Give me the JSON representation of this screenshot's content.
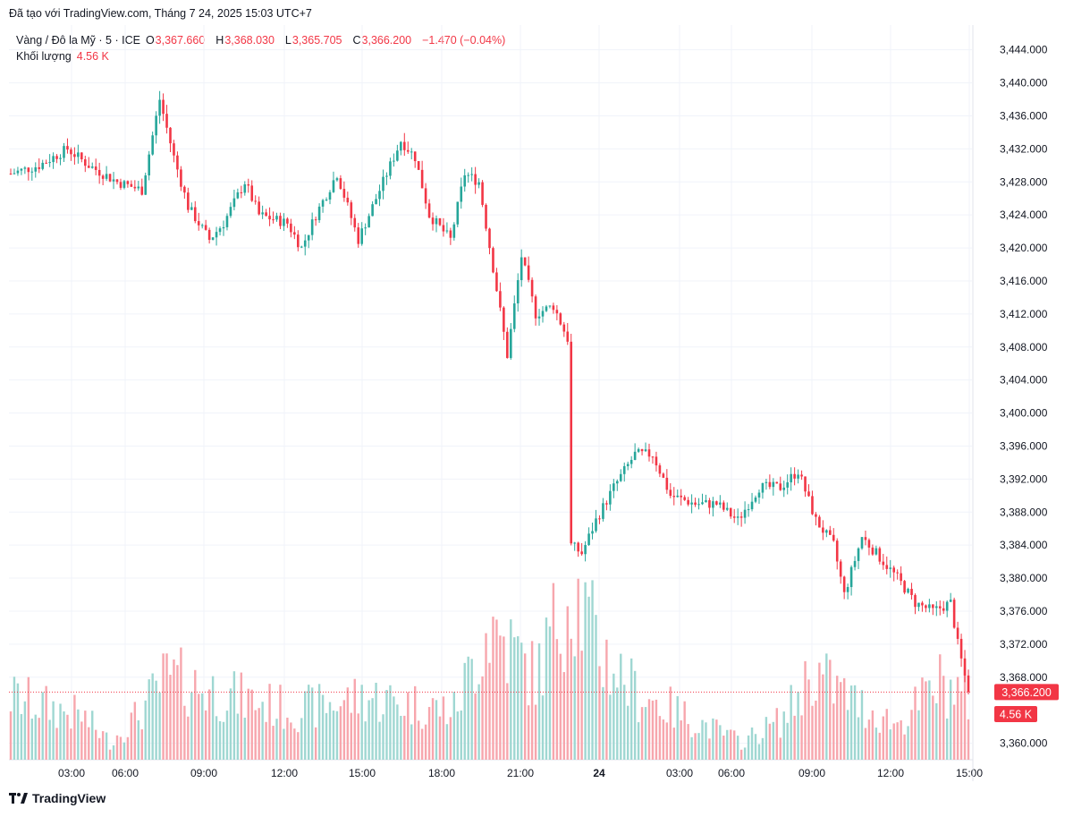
{
  "header": {
    "caption": "Đã tạo với TradingView.com, Tháng 7 24, 2025 15:03 UTC+7"
  },
  "legend": {
    "symbol": "Vàng / Đô la Mỹ · 5 · ICE",
    "open_key": "O",
    "open": "3,367.660",
    "high_key": "H",
    "high": "3,368.030",
    "low_key": "L",
    "low": "3,365.705",
    "close_key": "C",
    "close": "3,366.200",
    "change": "−1.470 (−0.04%)",
    "volume_label": "Khối lượng",
    "volume_value": "4.56 K"
  },
  "badges": {
    "price": "3,366.200",
    "volume": "4.56 K"
  },
  "footer": {
    "brand": "TradingView"
  },
  "colors": {
    "up": "#26a69a",
    "down": "#f23645",
    "up_vol": "#9fd7d2",
    "down_vol": "#f7a6ad",
    "grid": "#f0f3fa"
  },
  "chart_data": {
    "type": "candlestick",
    "title": "Vàng / Đô la Mỹ · 5 · ICE",
    "ylim": [
      3358,
      3447
    ],
    "y_ticks": [
      "3,444.000",
      "3,440.000",
      "3,436.000",
      "3,432.000",
      "3,428.000",
      "3,424.000",
      "3,420.000",
      "3,416.000",
      "3,412.000",
      "3,408.000",
      "3,404.000",
      "3,400.000",
      "3,396.000",
      "3,392.000",
      "3,388.000",
      "3,384.000",
      "3,380.000",
      "3,376.000",
      "3,372.000",
      "3,368.000",
      "3,360.000"
    ],
    "x_ticks": [
      "03:00",
      "06:00",
      "09:00",
      "12:00",
      "15:00",
      "18:00",
      "21:00",
      "24",
      "03:00",
      "06:00",
      "09:00",
      "12:00",
      "15:00"
    ],
    "price_path": [
      {
        "t": 0,
        "p": 3429
      },
      {
        "t": 8,
        "p": 3430
      },
      {
        "t": 16,
        "p": 3432
      },
      {
        "t": 22,
        "p": 3430
      },
      {
        "t": 30,
        "p": 3428
      },
      {
        "t": 37,
        "p": 3427
      },
      {
        "t": 42,
        "p": 3438
      },
      {
        "t": 46,
        "p": 3431
      },
      {
        "t": 50,
        "p": 3425
      },
      {
        "t": 56,
        "p": 3421
      },
      {
        "t": 60,
        "p": 3423
      },
      {
        "t": 66,
        "p": 3428
      },
      {
        "t": 70,
        "p": 3424
      },
      {
        "t": 78,
        "p": 3423
      },
      {
        "t": 82,
        "p": 3420
      },
      {
        "t": 86,
        "p": 3424
      },
      {
        "t": 92,
        "p": 3429
      },
      {
        "t": 98,
        "p": 3421
      },
      {
        "t": 104,
        "p": 3427
      },
      {
        "t": 110,
        "p": 3433
      },
      {
        "t": 114,
        "p": 3431
      },
      {
        "t": 118,
        "p": 3424
      },
      {
        "t": 124,
        "p": 3421
      },
      {
        "t": 128,
        "p": 3429
      },
      {
        "t": 132,
        "p": 3428
      },
      {
        "t": 137,
        "p": 3415
      },
      {
        "t": 140,
        "p": 3407
      },
      {
        "t": 144,
        "p": 3419
      },
      {
        "t": 148,
        "p": 3412
      },
      {
        "t": 153,
        "p": 3413
      },
      {
        "t": 157,
        "p": 3409
      },
      {
        "t": 158,
        "p": 3384
      },
      {
        "t": 161,
        "p": 3383
      },
      {
        "t": 165,
        "p": 3387
      },
      {
        "t": 170,
        "p": 3391
      },
      {
        "t": 176,
        "p": 3395
      },
      {
        "t": 181,
        "p": 3395
      },
      {
        "t": 186,
        "p": 3390
      },
      {
        "t": 193,
        "p": 3389
      },
      {
        "t": 199,
        "p": 3389
      },
      {
        "t": 205,
        "p": 3387
      },
      {
        "t": 211,
        "p": 3391
      },
      {
        "t": 217,
        "p": 3391
      },
      {
        "t": 222,
        "p": 3393
      },
      {
        "t": 227,
        "p": 3387
      },
      {
        "t": 232,
        "p": 3384
      },
      {
        "t": 235,
        "p": 3378
      },
      {
        "t": 240,
        "p": 3385
      },
      {
        "t": 246,
        "p": 3382
      },
      {
        "t": 250,
        "p": 3380
      },
      {
        "t": 255,
        "p": 3377
      },
      {
        "t": 260,
        "p": 3376
      },
      {
        "t": 265,
        "p": 3377
      },
      {
        "t": 267,
        "p": 3372
      },
      {
        "t": 270,
        "p": 3366.2
      }
    ],
    "volume_max_k": 15,
    "volume_path_k": [
      {
        "t": 0,
        "v": 4.6
      },
      {
        "t": 20,
        "v": 3.2
      },
      {
        "t": 28,
        "v": 1.3
      },
      {
        "t": 36,
        "v": 3.3
      },
      {
        "t": 44,
        "v": 6.0
      },
      {
        "t": 60,
        "v": 4.8
      },
      {
        "t": 80,
        "v": 3.6
      },
      {
        "t": 100,
        "v": 4.6
      },
      {
        "t": 125,
        "v": 3.6
      },
      {
        "t": 135,
        "v": 10.0
      },
      {
        "t": 148,
        "v": 6.0
      },
      {
        "t": 158,
        "v": 13.0
      },
      {
        "t": 166,
        "v": 8.0
      },
      {
        "t": 176,
        "v": 5.0
      },
      {
        "t": 190,
        "v": 3.2
      },
      {
        "t": 206,
        "v": 1.3
      },
      {
        "t": 218,
        "v": 3.0
      },
      {
        "t": 226,
        "v": 6.5
      },
      {
        "t": 238,
        "v": 4.2
      },
      {
        "t": 250,
        "v": 2.6
      },
      {
        "t": 262,
        "v": 5.6
      },
      {
        "t": 270,
        "v": 4.56
      }
    ],
    "last_price": 3366.2,
    "last_volume": "4.56 K"
  }
}
